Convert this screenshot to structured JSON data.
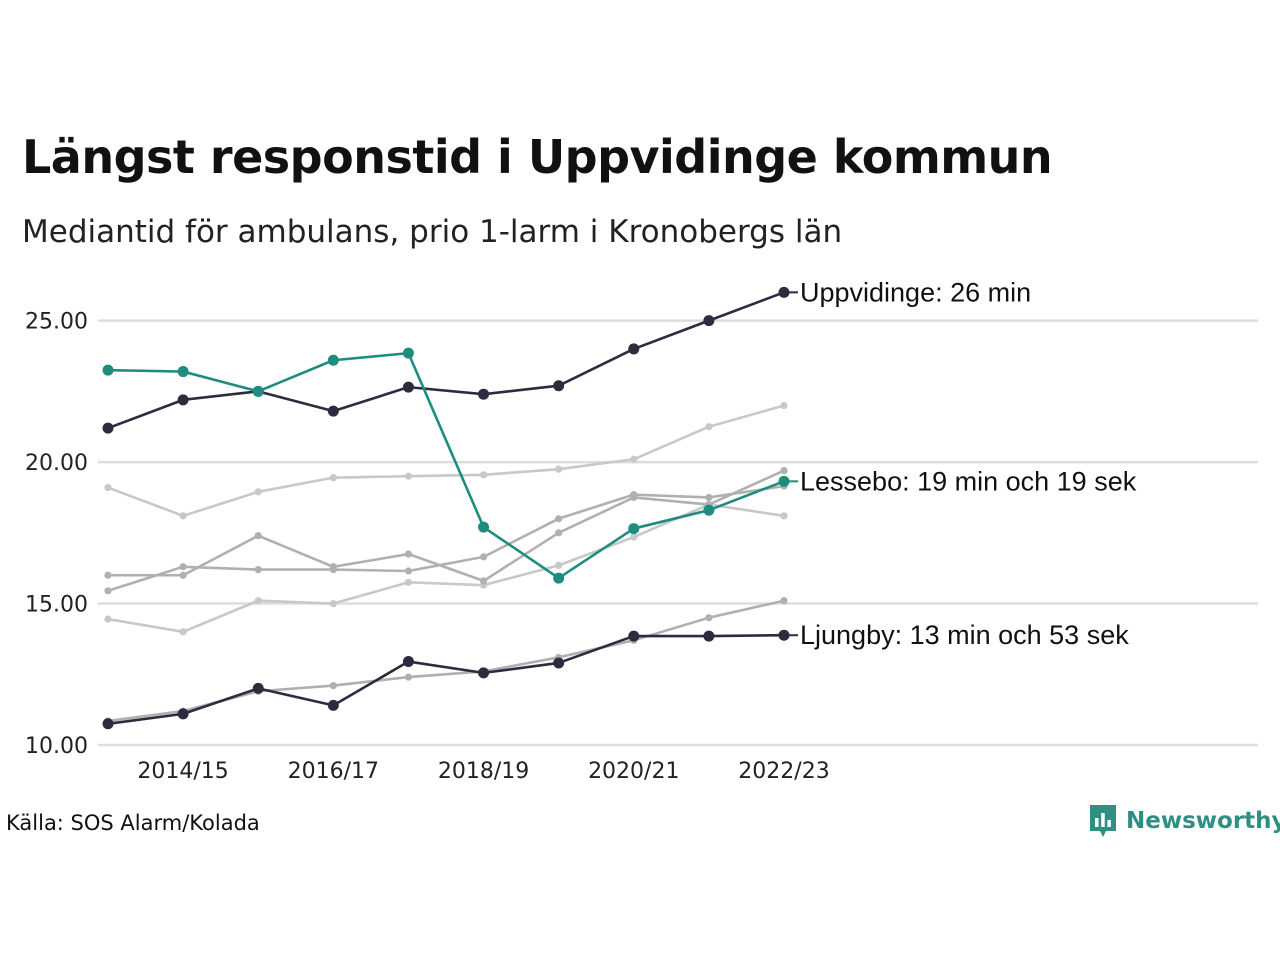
{
  "title": "Längst responstid i Uppvidinge kommun",
  "subtitle": "Mediantid för ambulans, prio 1-larm i Kronobergs län",
  "source": "Källa: SOS Alarm/Kolada",
  "brand": "Newsworthy",
  "chart_data": {
    "type": "line",
    "x": [
      "2013/14",
      "2014/15",
      "2015/16",
      "2016/17",
      "2017/18",
      "2018/19",
      "2019/20",
      "2020/21",
      "2021/22",
      "2022/23"
    ],
    "x_tick_labels": [
      "2014/15",
      "2016/17",
      "2018/19",
      "2020/21",
      "2022/23"
    ],
    "ylim": [
      10,
      25.8
    ],
    "y_ticks": [
      10,
      15,
      20,
      25
    ],
    "y_tick_labels": [
      "10.00",
      "15.00",
      "20.00",
      "25.00"
    ],
    "grid": true,
    "series": [
      {
        "label": "Uppvidinge: 26 min",
        "highlight": true,
        "color": "#2d2b3d",
        "values": [
          21.2,
          22.2,
          22.5,
          21.8,
          22.65,
          22.4,
          22.7,
          24.0,
          25.0,
          26.0
        ]
      },
      {
        "label": "Lessebo: 19 min och 19 sek",
        "highlight": true,
        "color": "#1e8d80",
        "values": [
          23.25,
          23.2,
          22.5,
          23.6,
          23.85,
          17.7,
          15.9,
          17.65,
          18.3,
          19.32
        ]
      },
      {
        "label": "Ljungby: 13 min och 53 sek",
        "highlight": true,
        "color": "#2d2b3d",
        "values": [
          10.75,
          11.1,
          12.0,
          11.4,
          12.95,
          12.55,
          12.9,
          13.85,
          13.85,
          13.88
        ]
      },
      {
        "highlight": false,
        "color": "#c8c8c8",
        "values": [
          19.1,
          18.1,
          18.95,
          19.45,
          19.5,
          19.55,
          19.75,
          20.1,
          21.25,
          22.0
        ]
      },
      {
        "highlight": false,
        "color": "#c8c8c8",
        "values": [
          14.45,
          14.0,
          15.1,
          15.0,
          15.75,
          15.65,
          16.35,
          17.35,
          18.5,
          18.1
        ]
      },
      {
        "highlight": false,
        "color": "#b0b0b0",
        "values": [
          16.0,
          16.0,
          17.4,
          16.3,
          16.75,
          15.8,
          17.5,
          18.75,
          18.5,
          19.7
        ]
      },
      {
        "highlight": false,
        "color": "#b0b0b0",
        "values": [
          15.45,
          16.3,
          16.2,
          16.2,
          16.15,
          16.65,
          18.0,
          18.85,
          18.75,
          19.15
        ]
      },
      {
        "highlight": false,
        "color": "#b0b0b0",
        "values": [
          10.85,
          11.2,
          11.9,
          12.1,
          12.4,
          12.6,
          13.1,
          13.7,
          14.5,
          15.1
        ]
      }
    ]
  }
}
